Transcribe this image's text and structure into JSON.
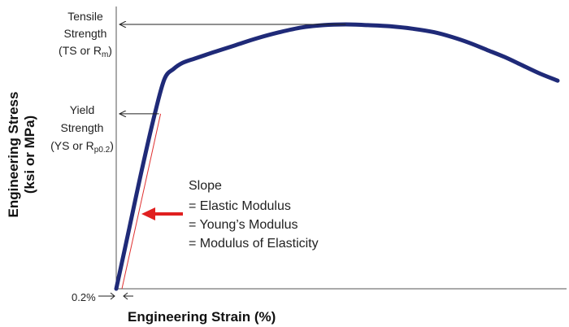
{
  "chart_data": {
    "type": "line",
    "xlabel": "Engineering Strain (%)",
    "ylabel_line1": "Engineering Stress",
    "ylabel_line2": "(ksi or MPa)",
    "series": [
      {
        "x": [
          0,
          0.03,
          0.06,
          0.09,
          0.11,
          0.13,
          0.15,
          0.18,
          0.22,
          0.27,
          0.32,
          0.37,
          0.42,
          0.47,
          0.52,
          0.57,
          0.62,
          0.67,
          0.72,
          0.76,
          0.8,
          0.84,
          0.88,
          0.92,
          0.96,
          1.0
        ],
        "y": [
          0,
          0.26,
          0.52,
          0.76,
          0.89,
          0.93,
          0.955,
          0.975,
          1.0,
          1.03,
          1.06,
          1.085,
          1.105,
          1.115,
          1.118,
          1.115,
          1.11,
          1.1,
          1.085,
          1.065,
          1.04,
          1.01,
          0.98,
          0.945,
          0.91,
          0.88
        ]
      }
    ],
    "series_color": "#1f2a78",
    "slope_line_color": "#e03030",
    "arrow_color": "#e02020",
    "ts_y": 1.118,
    "ys_y": 0.74,
    "offset_label": "0.2%",
    "labels": {
      "tensile_line1": "Tensile",
      "tensile_line2": "Strength",
      "tensile_line3_pre": "(TS or R",
      "tensile_line3_sub": "m",
      "tensile_line3_post": ")",
      "yield_line1": "Yield",
      "yield_line2": "Strength",
      "yield_line3_pre": "(YS or R",
      "yield_line3_sub": "p0.2",
      "yield_line3_post": ")",
      "slope_title": "Slope",
      "slope_line1": "= Elastic Modulus",
      "slope_line2": "= Young’s Modulus",
      "slope_line3": "= Modulus of Elasticity"
    }
  }
}
